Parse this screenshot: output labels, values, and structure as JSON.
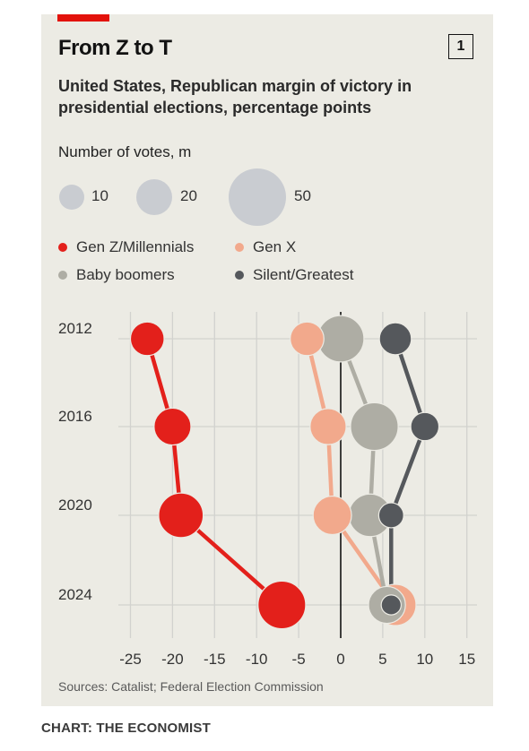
{
  "header": {
    "title": "From Z to T",
    "chart_number": "1",
    "subtitle": "United States, Republican margin of victory in presidential elections, percentage points"
  },
  "size_legend": {
    "title": "Number of votes, m",
    "items": [
      {
        "label": "10",
        "value": 10
      },
      {
        "label": "20",
        "value": 20
      },
      {
        "label": "50",
        "value": 50
      }
    ]
  },
  "footer": {
    "sources": "Sources: Catalist; Federal Election Commission",
    "credit": "CHART: THE ECONOMIST"
  },
  "colors": {
    "gen_z": "#e3201b",
    "gen_x": "#f2a98c",
    "boomers": "#aeada4",
    "silent": "#55585c",
    "size_legend": "#c9ccd1",
    "zero_line": "#121212",
    "grid": "#d2d2ce"
  },
  "chart_data": {
    "type": "scatter",
    "title": "From Z to T",
    "subtitle": "United States, Republican margin of victory in presidential elections, percentage points",
    "xlabel": "",
    "ylabel": "",
    "xlim": [
      -25,
      15
    ],
    "x_ticks": [
      "-25",
      "-20",
      "-15",
      "-10",
      "-5",
      "0",
      "5",
      "10",
      "15"
    ],
    "x_tick_values": [
      -25,
      -20,
      -15,
      -10,
      -5,
      0,
      5,
      10,
      15
    ],
    "y_categories": [
      "2012",
      "2016",
      "2020",
      "2024"
    ],
    "grid": true,
    "bubble_size": "Number of votes, m",
    "series": [
      {
        "name": "Gen Z/Millennials",
        "color": "#e3201b",
        "margins": [
          -23,
          -20,
          -19,
          -7
        ],
        "votes": [
          20,
          24,
          35,
          40
        ]
      },
      {
        "name": "Gen X",
        "color": "#f2a98c",
        "margins": [
          -4,
          -1.5,
          -1,
          6.5
        ],
        "votes": [
          20,
          23,
          26,
          30
        ]
      },
      {
        "name": "Baby boomers",
        "color": "#aeada4",
        "margins": [
          0,
          4,
          3.5,
          5.5
        ],
        "votes": [
          38,
          40,
          32,
          24
        ]
      },
      {
        "name": "Silent/Greatest",
        "color": "#55585c",
        "margins": [
          6.5,
          10,
          6,
          6
        ],
        "votes": [
          18,
          14,
          11,
          7
        ]
      }
    ]
  }
}
